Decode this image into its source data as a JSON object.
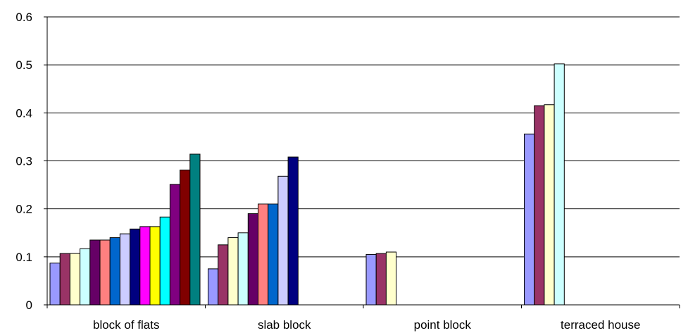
{
  "chart_data": {
    "type": "bar",
    "title": "",
    "xlabel": "",
    "ylabel": "",
    "ylim": [
      0,
      0.6
    ],
    "yticks": [
      "0",
      "0.1",
      "0.2",
      "0.3",
      "0.4",
      "0.5",
      "0.6"
    ],
    "grid": true,
    "legend": "none",
    "categories": [
      "block of flats",
      "slab block",
      "point block",
      "terraced house"
    ],
    "groups": [
      {
        "category": "block of flats",
        "values": [
          0.087,
          0.107,
          0.107,
          0.117,
          0.135,
          0.135,
          0.14,
          0.148,
          0.158,
          0.163,
          0.163,
          0.183,
          0.251,
          0.281,
          0.314
        ],
        "colors": [
          "#9999ff",
          "#993366",
          "#ffffcc",
          "#ccffff",
          "#660066",
          "#ff8080",
          "#0066cc",
          "#ccccff",
          "#000080",
          "#ff00ff",
          "#ffff00",
          "#00ffff",
          "#800080",
          "#800000",
          "#008080"
        ]
      },
      {
        "category": "slab block",
        "values": [
          0.075,
          0.125,
          0.14,
          0.15,
          0.19,
          0.21,
          0.21,
          0.268,
          0.308
        ],
        "colors": [
          "#9999ff",
          "#993366",
          "#ffffcc",
          "#ccffff",
          "#660066",
          "#ff8080",
          "#0066cc",
          "#ccccff",
          "#000080"
        ]
      },
      {
        "category": "point block",
        "values": [
          0.105,
          0.107,
          0.11
        ],
        "colors": [
          "#9999ff",
          "#993366",
          "#ffffcc"
        ]
      },
      {
        "category": "terraced house",
        "values": [
          0.356,
          0.415,
          0.417,
          0.502
        ],
        "colors": [
          "#9999ff",
          "#993366",
          "#ffffcc",
          "#ccffff"
        ]
      }
    ]
  }
}
